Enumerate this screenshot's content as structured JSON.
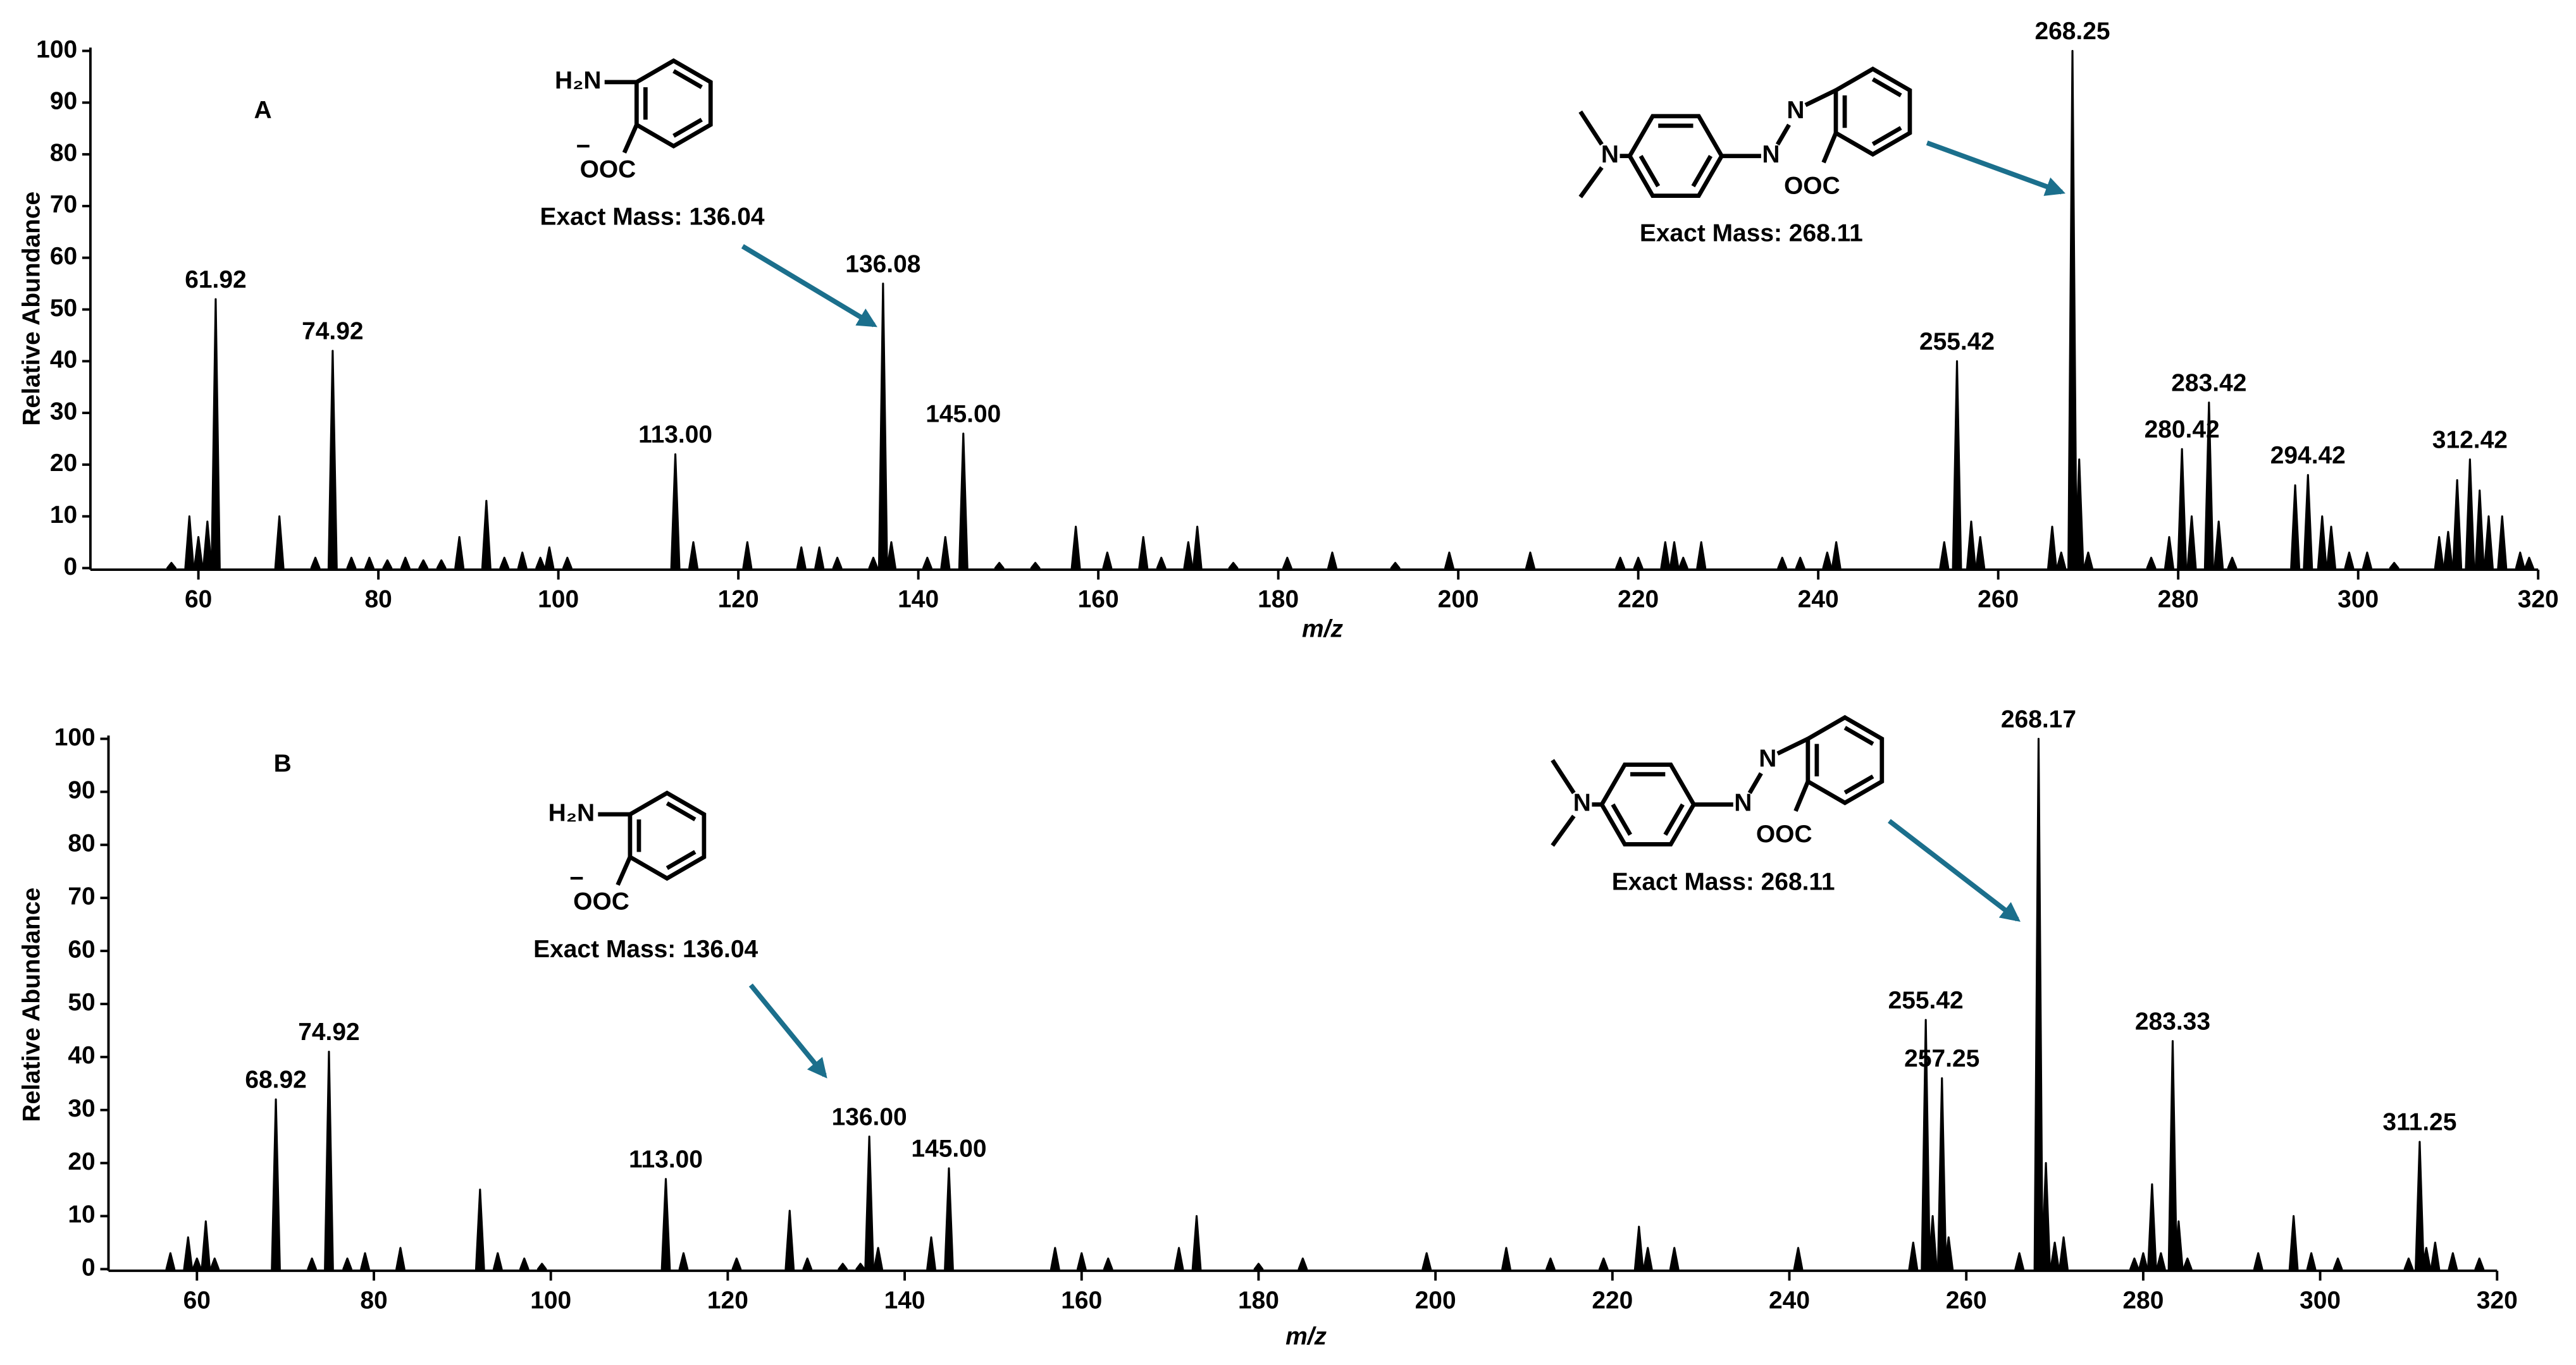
{
  "chart_data": [
    {
      "type": "spectrum",
      "panel": "A",
      "xlabel": "m/z",
      "ylabel": "Relative Abundance",
      "color": "#000000",
      "xlim": [
        48,
        320
      ],
      "ylim": [
        0,
        100
      ],
      "xticks": [
        60,
        80,
        100,
        120,
        140,
        160,
        180,
        200,
        220,
        240,
        260,
        280,
        300,
        320
      ],
      "yticks": [
        0,
        10,
        20,
        30,
        40,
        50,
        60,
        70,
        80,
        90,
        100
      ],
      "x": [
        57,
        59,
        60,
        61,
        61.92,
        69,
        73,
        74.92,
        77,
        79,
        81,
        83,
        85,
        87,
        89,
        92,
        94,
        96,
        98,
        99,
        101,
        113,
        115,
        121,
        127,
        129,
        131,
        135,
        136.08,
        137,
        141,
        143,
        145,
        149,
        153,
        157.5,
        161,
        165,
        167,
        170,
        171,
        175,
        181,
        186,
        193,
        199,
        208,
        218,
        220,
        223,
        224,
        225,
        227,
        236,
        238,
        241,
        242,
        254,
        255.42,
        257,
        258,
        266,
        267,
        268.25,
        269,
        270,
        277,
        279,
        280.42,
        281.5,
        283.42,
        284.5,
        286,
        293,
        294.42,
        296,
        297,
        299,
        301,
        304,
        309,
        310,
        311,
        312.42,
        313.5,
        314.5,
        316,
        318,
        319
      ],
      "values": [
        1,
        10,
        6,
        9,
        52,
        10,
        2,
        42,
        2,
        2,
        1.5,
        2,
        1.5,
        1.5,
        6,
        13,
        2,
        3,
        2,
        4,
        2,
        22,
        5,
        5,
        4,
        4,
        2,
        2,
        55,
        5,
        2,
        6,
        26,
        1,
        1,
        8,
        3,
        6,
        2,
        5,
        8,
        1,
        2,
        3,
        1,
        3,
        3,
        2,
        2,
        5,
        5,
        2,
        5,
        2,
        2,
        3,
        5,
        5,
        40,
        9,
        6,
        8,
        3,
        100,
        21,
        3,
        2,
        6,
        23,
        10,
        32,
        9,
        2,
        16,
        18,
        10,
        8,
        3,
        3,
        1,
        6,
        7,
        17,
        21,
        15,
        10,
        10,
        3,
        2
      ],
      "x_labels": [
        null,
        null,
        null,
        null,
        "61.92",
        null,
        null,
        "74.92",
        null,
        null,
        null,
        null,
        null,
        null,
        null,
        null,
        null,
        null,
        null,
        null,
        null,
        "113.00",
        null,
        null,
        null,
        null,
        null,
        null,
        "136.08",
        null,
        null,
        null,
        "145.00",
        null,
        null,
        null,
        null,
        null,
        null,
        null,
        null,
        null,
        null,
        null,
        null,
        null,
        null,
        null,
        null,
        null,
        null,
        null,
        null,
        null,
        null,
        null,
        null,
        null,
        "255.42",
        null,
        null,
        null,
        null,
        "268.25",
        null,
        null,
        null,
        null,
        "280.42",
        null,
        "283.42",
        null,
        null,
        null,
        "294.42",
        null,
        null,
        null,
        null,
        null,
        null,
        null,
        null,
        "312.42",
        null,
        null,
        null,
        null,
        null
      ],
      "annotations": [
        {
          "atoms": [
            "H₂N",
            "−",
            "OOC"
          ],
          "text": "Exact Mass: 136.04"
        },
        {
          "atoms": [
            "N",
            "N",
            "N",
            "OOC"
          ],
          "text": "Exact Mass: 268.11"
        }
      ]
    },
    {
      "type": "spectrum",
      "panel": "B",
      "xlabel": "m/z",
      "ylabel": "Relative Abundance",
      "color": "#000000",
      "xlim": [
        50,
        320
      ],
      "ylim": [
        0,
        100
      ],
      "xticks": [
        60,
        80,
        100,
        120,
        140,
        160,
        180,
        200,
        220,
        240,
        260,
        280,
        300,
        320
      ],
      "yticks": [
        0,
        10,
        20,
        30,
        40,
        50,
        60,
        70,
        80,
        90,
        100
      ],
      "x": [
        57,
        59,
        60,
        61,
        62,
        68.92,
        73,
        74.92,
        77,
        79,
        83,
        92,
        94,
        97,
        99,
        113,
        115,
        121,
        127,
        129,
        133,
        135,
        136,
        137,
        143,
        145,
        157,
        160,
        163,
        171,
        173,
        180,
        185,
        199,
        208,
        213,
        219,
        223,
        224,
        227,
        241,
        254,
        255.42,
        256.2,
        257.25,
        258,
        266,
        268.17,
        269,
        270,
        271,
        279,
        280,
        281,
        282,
        283.33,
        284,
        285,
        293,
        297,
        299,
        302,
        310,
        311.25,
        312,
        313,
        315,
        318
      ],
      "values": [
        3,
        6,
        2,
        9,
        2,
        32,
        2,
        41,
        2,
        3,
        4,
        15,
        3,
        2,
        1,
        17,
        3,
        2,
        11,
        2,
        1,
        1,
        25,
        4,
        6,
        19,
        4,
        3,
        2,
        4,
        10,
        1,
        2,
        3,
        4,
        2,
        2,
        8,
        4,
        4,
        4,
        5,
        47,
        10,
        36,
        6,
        3,
        100,
        20,
        5,
        6,
        2,
        3,
        16,
        3,
        43,
        9,
        2,
        3,
        10,
        3,
        2,
        2,
        24,
        4,
        5,
        3,
        2
      ],
      "x_labels": [
        null,
        null,
        null,
        null,
        null,
        "68.92",
        null,
        "74.92",
        null,
        null,
        null,
        null,
        null,
        null,
        null,
        "113.00",
        null,
        null,
        null,
        null,
        null,
        null,
        "136.00",
        null,
        null,
        "145.00",
        null,
        null,
        null,
        null,
        null,
        null,
        null,
        null,
        null,
        null,
        null,
        null,
        null,
        null,
        null,
        null,
        "255.42",
        null,
        "257.25",
        null,
        null,
        "268.17",
        null,
        null,
        null,
        null,
        null,
        null,
        null,
        "283.33",
        null,
        null,
        null,
        null,
        null,
        null,
        null,
        "311.25",
        null,
        null,
        null,
        null
      ],
      "annotations": [
        {
          "atoms": [
            "H₂N",
            "−",
            "OOC"
          ],
          "text": "Exact Mass: 136.04"
        },
        {
          "atoms": [
            "N",
            "N",
            "N",
            "OOC"
          ],
          "text": "Exact Mass: 268.11"
        }
      ]
    }
  ]
}
